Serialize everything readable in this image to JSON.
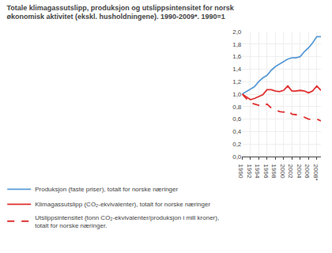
{
  "chart_data": {
    "type": "line",
    "title": "Totale klimagassutslipp, produksjon og utslippsintensitet for norsk\nøkonomisk aktivitet (ekskl. husholdningene). 1990-2009*. 1990=1",
    "x": [
      1990,
      1991,
      1992,
      1993,
      1994,
      1995,
      1996,
      1997,
      1998,
      1999,
      2000,
      2001,
      2002,
      2003,
      2004,
      2005,
      2006,
      2007,
      2008,
      2009
    ],
    "series": [
      {
        "name": "Produksjon (faste priser), totalt for norske næringer",
        "color": "#5b9bd5",
        "line_style": "solid",
        "values": [
          1.0,
          1.04,
          1.08,
          1.12,
          1.2,
          1.26,
          1.3,
          1.38,
          1.44,
          1.48,
          1.52,
          1.56,
          1.58,
          1.58,
          1.6,
          1.68,
          1.74,
          1.82,
          1.92,
          1.92
        ]
      },
      {
        "name": "Klimagassutslipp (CO₂-ekvivalenter), totalt for norske næringer",
        "color": "#e03030",
        "line_style": "solid",
        "values": [
          1.0,
          0.96,
          0.91,
          0.93,
          0.96,
          0.99,
          1.07,
          1.07,
          1.05,
          1.04,
          1.06,
          1.13,
          1.05,
          1.05,
          1.06,
          1.05,
          1.02,
          1.05,
          1.13,
          1.06
        ]
      },
      {
        "name": "Utslippsintensitet (tonn CO₂-ekvivalenter/produksjon i mill kroner),\ntotalt for norske næringer.",
        "color": "#e03030",
        "line_style": "dashed",
        "values": [
          1.0,
          0.93,
          0.86,
          0.84,
          0.82,
          0.8,
          0.84,
          0.78,
          0.75,
          0.72,
          0.71,
          0.74,
          0.68,
          0.67,
          0.66,
          0.63,
          0.6,
          0.59,
          0.6,
          0.57
        ]
      }
    ],
    "xlim": [
      1990,
      2009
    ],
    "xticks": [
      1990,
      1992,
      1994,
      1996,
      1998,
      2000,
      2002,
      2004,
      2006,
      {
        "value": 2008,
        "label": "2008*"
      }
    ],
    "ylim": [
      0.0,
      2.0
    ],
    "yticks": [
      {
        "value": 0.0,
        "label": "0,0"
      },
      {
        "value": 0.2,
        "label": "0,2"
      },
      {
        "value": 0.4,
        "label": "0,4"
      },
      {
        "value": 0.6,
        "label": "0,6"
      },
      {
        "value": 0.8,
        "label": "0,8"
      },
      {
        "value": 1.0,
        "label": "1,0"
      },
      {
        "value": 1.2,
        "label": "1,2"
      },
      {
        "value": 1.4,
        "label": "1,4"
      },
      {
        "value": 1.6,
        "label": "1,6"
      },
      {
        "value": 1.8,
        "label": "1,8"
      },
      {
        "value": 2.0,
        "label": "2,0"
      }
    ],
    "grid": true,
    "legend": "bottom"
  }
}
